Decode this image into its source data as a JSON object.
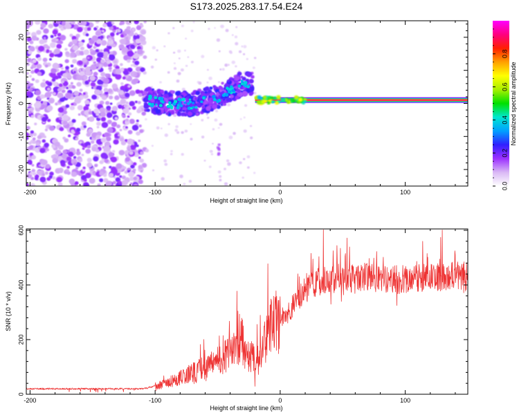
{
  "title": "S173.2025.283.17.54.E24",
  "chart_data": [
    {
      "type": "heatmap",
      "title": "S173.2025.283.17.54.E24",
      "xlabel": "Height of straight line (km)",
      "ylabel": "Frequency (Hz)",
      "xlim": [
        -203,
        150
      ],
      "ylim": [
        -25,
        25
      ],
      "xticks": [
        -200,
        -100,
        0,
        100
      ],
      "yticks": [
        -20,
        -10,
        0,
        10,
        20
      ],
      "colorbar": {
        "label": "Normalized spectral amplitude",
        "range": [
          0.0,
          1.0
        ],
        "ticks": [
          0.0,
          0.2,
          0.4,
          0.6,
          0.8
        ],
        "tick_labels": [
          "0.0",
          "0.2",
          "0.4",
          "0.6",
          "0.8"
        ],
        "colors": [
          "#ffffff",
          "#d9b8f5",
          "#9b30ff",
          "#3020ff",
          "#00a0ff",
          "#00e6d0",
          "#00e000",
          "#a8f000",
          "#ffff00",
          "#ffa000",
          "#ff2000",
          "#ff0080",
          "#ff00ff"
        ]
      },
      "features": [
        {
          "name": "scattered noise",
          "x_range": [
            -203,
            -108
          ],
          "freq_range": [
            -25,
            25
          ],
          "amplitude": 0.1
        },
        {
          "name": "sparse noise",
          "x_range": [
            -108,
            -20
          ],
          "freq_range": [
            -25,
            25
          ],
          "amplitude": 0.05
        },
        {
          "name": "dispersed signal",
          "x_range": [
            -108,
            -30
          ],
          "center_freq": [
            1,
            0,
            0,
            2,
            6
          ],
          "amplitude": 0.25
        },
        {
          "name": "isolated blob",
          "x": -49,
          "freq": -14,
          "amplitude": 0.15
        },
        {
          "name": "narrowband signal",
          "x_range": [
            -20,
            150
          ],
          "center_freq": 1,
          "amplitude": 1.0
        }
      ]
    },
    {
      "type": "line",
      "xlabel": "Height of straight line (km)",
      "ylabel": "SNR (10 * v/v)",
      "xlim": [
        -203,
        150
      ],
      "ylim": [
        0,
        605
      ],
      "xticks": [
        -200,
        -100,
        0,
        100
      ],
      "yticks": [
        0,
        200,
        400,
        600
      ],
      "series": [
        {
          "name": "SNR",
          "color": "#ee3333",
          "x": [
            -203,
            -150,
            -110,
            -100,
            -90,
            -80,
            -70,
            -60,
            -50,
            -40,
            -30,
            -20,
            -15,
            -10,
            -5,
            0,
            5,
            10,
            15,
            20,
            25,
            30,
            40,
            50,
            60,
            70,
            80,
            90,
            100,
            110,
            120,
            130,
            140,
            150
          ],
          "values": [
            20,
            20,
            20,
            30,
            40,
            60,
            80,
            100,
            120,
            150,
            180,
            120,
            140,
            230,
            260,
            270,
            290,
            320,
            360,
            380,
            400,
            410,
            420,
            430,
            420,
            430,
            425,
            420,
            420,
            425,
            430,
            430,
            435,
            430
          ]
        }
      ]
    }
  ]
}
